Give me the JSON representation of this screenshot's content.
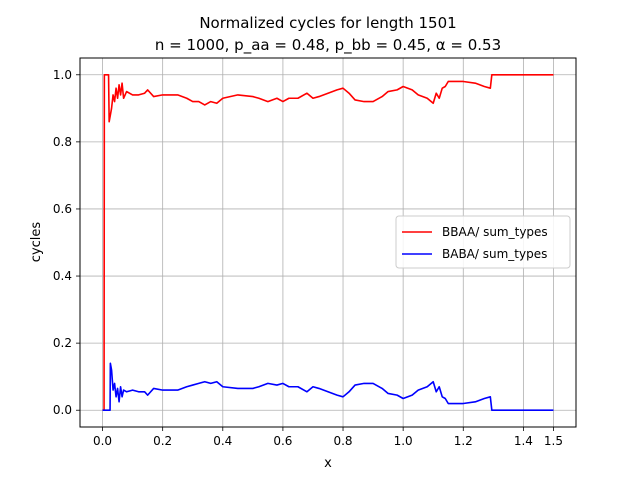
{
  "chart_data": {
    "type": "line",
    "title": "Normalized cycles for length 1501",
    "subtitle": "n = 1000, p_aa = 0.48, p_bb = 0.45, α = 0.53",
    "xlabel": "x",
    "ylabel": "cycles",
    "xlim": [
      -0.075,
      1.575
    ],
    "ylim": [
      -0.05,
      1.05
    ],
    "x_ticks": [
      0.0,
      0.2,
      0.4,
      0.6,
      0.8,
      1.0,
      1.2,
      1.4,
      1.5
    ],
    "x_tick_labels": [
      "0.0",
      "0.2",
      "0.4",
      "0.6",
      "0.8",
      "1.0",
      "1.2",
      "1.4",
      "1.5"
    ],
    "y_ticks": [
      0.0,
      0.2,
      0.4,
      0.6,
      0.8,
      1.0
    ],
    "y_tick_labels": [
      "0.0",
      "0.2",
      "0.4",
      "0.6",
      "0.8",
      "1.0"
    ],
    "grid": true,
    "legend_position": "center-right",
    "series": [
      {
        "name": "BBAA/ sum_types",
        "color": "#ff0000",
        "points": [
          [
            0.0,
            0.0
          ],
          [
            0.005,
            0.0
          ],
          [
            0.006,
            1.0
          ],
          [
            0.02,
            1.0
          ],
          [
            0.022,
            0.86
          ],
          [
            0.03,
            0.9
          ],
          [
            0.035,
            0.94
          ],
          [
            0.04,
            0.92
          ],
          [
            0.045,
            0.96
          ],
          [
            0.05,
            0.93
          ],
          [
            0.055,
            0.97
          ],
          [
            0.06,
            0.94
          ],
          [
            0.065,
            0.975
          ],
          [
            0.07,
            0.93
          ],
          [
            0.08,
            0.95
          ],
          [
            0.1,
            0.94
          ],
          [
            0.12,
            0.94
          ],
          [
            0.14,
            0.945
          ],
          [
            0.15,
            0.955
          ],
          [
            0.17,
            0.935
          ],
          [
            0.2,
            0.94
          ],
          [
            0.25,
            0.94
          ],
          [
            0.28,
            0.93
          ],
          [
            0.3,
            0.92
          ],
          [
            0.32,
            0.92
          ],
          [
            0.34,
            0.91
          ],
          [
            0.36,
            0.92
          ],
          [
            0.38,
            0.915
          ],
          [
            0.4,
            0.93
          ],
          [
            0.45,
            0.94
          ],
          [
            0.5,
            0.935
          ],
          [
            0.52,
            0.93
          ],
          [
            0.55,
            0.92
          ],
          [
            0.58,
            0.93
          ],
          [
            0.6,
            0.92
          ],
          [
            0.62,
            0.93
          ],
          [
            0.65,
            0.93
          ],
          [
            0.68,
            0.945
          ],
          [
            0.7,
            0.93
          ],
          [
            0.72,
            0.935
          ],
          [
            0.75,
            0.945
          ],
          [
            0.78,
            0.955
          ],
          [
            0.8,
            0.96
          ],
          [
            0.82,
            0.945
          ],
          [
            0.84,
            0.925
          ],
          [
            0.87,
            0.92
          ],
          [
            0.9,
            0.92
          ],
          [
            0.93,
            0.935
          ],
          [
            0.95,
            0.95
          ],
          [
            0.98,
            0.955
          ],
          [
            1.0,
            0.965
          ],
          [
            1.03,
            0.955
          ],
          [
            1.05,
            0.94
          ],
          [
            1.08,
            0.93
          ],
          [
            1.1,
            0.915
          ],
          [
            1.11,
            0.945
          ],
          [
            1.12,
            0.93
          ],
          [
            1.13,
            0.96
          ],
          [
            1.14,
            0.965
          ],
          [
            1.15,
            0.98
          ],
          [
            1.2,
            0.98
          ],
          [
            1.24,
            0.975
          ],
          [
            1.27,
            0.965
          ],
          [
            1.29,
            0.96
          ],
          [
            1.295,
            1.0
          ],
          [
            1.5,
            1.0
          ]
        ]
      },
      {
        "name": "BABA/ sum_types",
        "color": "#0000ff",
        "points": [
          [
            0.0,
            0.0
          ],
          [
            0.025,
            0.0
          ],
          [
            0.026,
            0.14
          ],
          [
            0.03,
            0.12
          ],
          [
            0.035,
            0.06
          ],
          [
            0.04,
            0.08
          ],
          [
            0.045,
            0.04
          ],
          [
            0.05,
            0.065
          ],
          [
            0.055,
            0.025
          ],
          [
            0.06,
            0.07
          ],
          [
            0.065,
            0.04
          ],
          [
            0.07,
            0.06
          ],
          [
            0.08,
            0.055
          ],
          [
            0.1,
            0.06
          ],
          [
            0.12,
            0.055
          ],
          [
            0.14,
            0.055
          ],
          [
            0.15,
            0.045
          ],
          [
            0.17,
            0.065
          ],
          [
            0.2,
            0.06
          ],
          [
            0.25,
            0.06
          ],
          [
            0.28,
            0.07
          ],
          [
            0.3,
            0.075
          ],
          [
            0.32,
            0.08
          ],
          [
            0.34,
            0.085
          ],
          [
            0.36,
            0.08
          ],
          [
            0.38,
            0.085
          ],
          [
            0.4,
            0.07
          ],
          [
            0.45,
            0.065
          ],
          [
            0.5,
            0.065
          ],
          [
            0.52,
            0.07
          ],
          [
            0.55,
            0.08
          ],
          [
            0.58,
            0.075
          ],
          [
            0.6,
            0.08
          ],
          [
            0.62,
            0.07
          ],
          [
            0.65,
            0.07
          ],
          [
            0.68,
            0.055
          ],
          [
            0.7,
            0.07
          ],
          [
            0.72,
            0.065
          ],
          [
            0.75,
            0.055
          ],
          [
            0.78,
            0.045
          ],
          [
            0.8,
            0.04
          ],
          [
            0.82,
            0.055
          ],
          [
            0.84,
            0.075
          ],
          [
            0.87,
            0.08
          ],
          [
            0.9,
            0.08
          ],
          [
            0.93,
            0.065
          ],
          [
            0.95,
            0.05
          ],
          [
            0.98,
            0.045
          ],
          [
            1.0,
            0.035
          ],
          [
            1.03,
            0.045
          ],
          [
            1.05,
            0.06
          ],
          [
            1.08,
            0.07
          ],
          [
            1.1,
            0.085
          ],
          [
            1.11,
            0.055
          ],
          [
            1.12,
            0.07
          ],
          [
            1.13,
            0.04
          ],
          [
            1.14,
            0.035
          ],
          [
            1.15,
            0.02
          ],
          [
            1.2,
            0.02
          ],
          [
            1.24,
            0.025
          ],
          [
            1.27,
            0.035
          ],
          [
            1.29,
            0.04
          ],
          [
            1.295,
            0.0
          ],
          [
            1.5,
            0.0
          ]
        ]
      }
    ]
  }
}
